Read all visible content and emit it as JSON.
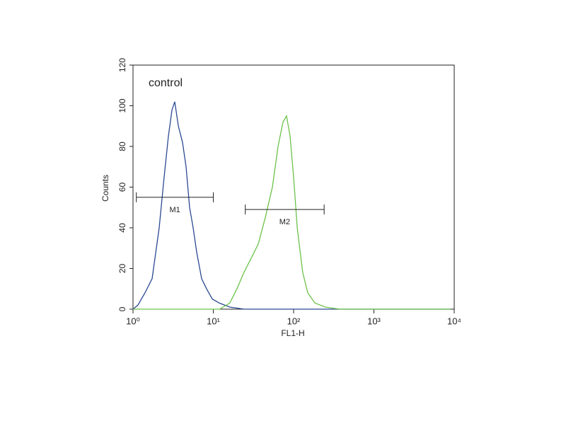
{
  "chart_data": {
    "type": "histogram-line",
    "annotation": "control",
    "xlabel": "FL1-H",
    "ylabel": "Counts",
    "xscale": "log",
    "xlim": [
      1,
      10000
    ],
    "xticks": [
      {
        "value": 1,
        "label": "10⁰"
      },
      {
        "value": 10,
        "label": "10¹"
      },
      {
        "value": 100,
        "label": "10²"
      },
      {
        "value": 1000,
        "label": "10³"
      },
      {
        "value": 10000,
        "label": "10⁴"
      }
    ],
    "ylim": [
      0,
      120
    ],
    "yticks": [
      0,
      20,
      40,
      60,
      80,
      100,
      120
    ],
    "series": [
      {
        "color": "#2b4a92",
        "x": [
          1,
          1.15,
          1.41,
          1.73,
          2.12,
          2.44,
          2.76,
          3.06,
          3.31,
          3.67,
          4.14,
          4.58,
          5.07,
          5.61,
          6.21,
          7.16,
          8.25,
          9.7,
          11.9,
          16.1,
          24.2,
          9000
        ],
        "values": [
          0,
          2,
          8,
          15,
          40,
          65,
          85,
          98,
          102,
          90,
          82,
          70,
          50,
          40,
          28,
          15,
          10,
          5,
          3,
          1,
          0,
          0
        ]
      },
      {
        "color": "#6cc24a",
        "x": [
          1,
          12,
          16,
          19.7,
          24,
          29.6,
          36.3,
          44.4,
          54.4,
          64,
          73.8,
          81.6,
          90.4,
          100,
          111,
          130,
          150,
          184,
          249,
          374,
          9000
        ],
        "values": [
          0,
          0,
          3,
          10,
          18,
          25,
          32,
          45,
          60,
          80,
          92,
          95,
          85,
          65,
          40,
          18,
          8,
          3,
          1,
          0,
          0
        ]
      }
    ],
    "markers": [
      {
        "label": "M1",
        "range": [
          1.1,
          10
        ],
        "y": 55
      },
      {
        "label": "M2",
        "range": [
          25,
          240
        ],
        "y": 49
      }
    ]
  }
}
